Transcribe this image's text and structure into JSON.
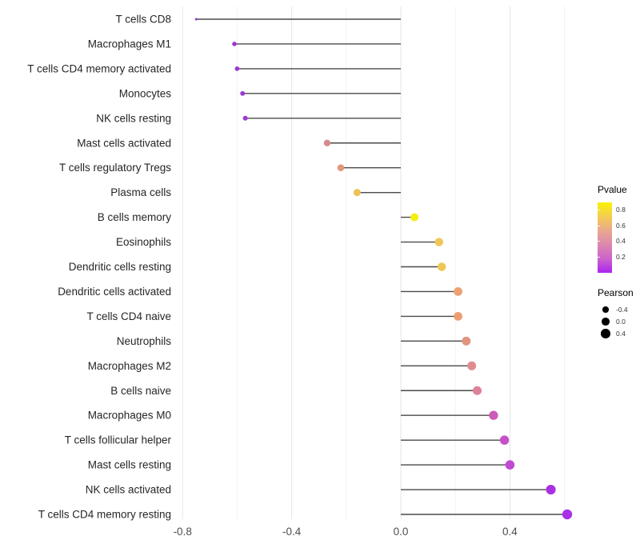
{
  "chart_data": {
    "type": "lollipop",
    "title": "",
    "xlabel": "",
    "ylabel": "",
    "x_range": [
      -0.818,
      0.625
    ],
    "baseline": 0,
    "grid": true,
    "x_ticks": [
      {
        "value": -0.8,
        "label": "-0.8"
      },
      {
        "value": -0.4,
        "label": "-0.4"
      },
      {
        "value": 0.0,
        "label": "0.0"
      },
      {
        "value": 0.4,
        "label": "0.4"
      }
    ],
    "x_gridlines_minor": [
      -0.6,
      -0.2,
      0.2,
      0.6
    ],
    "rows": [
      {
        "label": "T cells CD8",
        "pearson": -0.75,
        "pvalue": 0.05,
        "color": "#9b30e0"
      },
      {
        "label": "Macrophages M1",
        "pearson": -0.61,
        "pvalue": 0.05,
        "color": "#9c36d2"
      },
      {
        "label": "T cells CD4 memory activated",
        "pearson": -0.6,
        "pvalue": 0.05,
        "color": "#9c36d2"
      },
      {
        "label": "Monocytes",
        "pearson": -0.58,
        "pvalue": 0.06,
        "color": "#9d38d3"
      },
      {
        "label": "NK cells resting",
        "pearson": -0.57,
        "pvalue": 0.06,
        "color": "#9d38d3"
      },
      {
        "label": "Mast cells activated",
        "pearson": -0.27,
        "pvalue": 0.48,
        "color": "#d9888f"
      },
      {
        "label": "T cells regulatory  Tregs",
        "pearson": -0.22,
        "pvalue": 0.55,
        "color": "#e2977b"
      },
      {
        "label": "Plasma cells",
        "pearson": -0.16,
        "pvalue": 0.68,
        "color": "#ecc156"
      },
      {
        "label": "B cells memory",
        "pearson": 0.05,
        "pvalue": 0.86,
        "color": "#f2ee11"
      },
      {
        "label": "Eosinophils",
        "pearson": 0.14,
        "pvalue": 0.68,
        "color": "#eec754"
      },
      {
        "label": "Dendritic cells resting",
        "pearson": 0.15,
        "pvalue": 0.68,
        "color": "#eec754"
      },
      {
        "label": "Dendritic cells activated",
        "pearson": 0.21,
        "pvalue": 0.58,
        "color": "#eda172"
      },
      {
        "label": "T cells CD4 naive",
        "pearson": 0.21,
        "pvalue": 0.58,
        "color": "#eb9e70"
      },
      {
        "label": "Neutrophils",
        "pearson": 0.24,
        "pvalue": 0.52,
        "color": "#e2947e"
      },
      {
        "label": "Macrophages M2",
        "pearson": 0.26,
        "pvalue": 0.47,
        "color": "#e08b90"
      },
      {
        "label": "B cells naive",
        "pearson": 0.28,
        "pvalue": 0.44,
        "color": "#dd8199"
      },
      {
        "label": "Macrophages M0",
        "pearson": 0.34,
        "pvalue": 0.28,
        "color": "#cc5cb8"
      },
      {
        "label": "T cells follicular helper",
        "pearson": 0.38,
        "pvalue": 0.22,
        "color": "#c850c8"
      },
      {
        "label": "Mast cells resting",
        "pearson": 0.4,
        "pvalue": 0.18,
        "color": "#bf4bd0"
      },
      {
        "label": "NK cells activated",
        "pearson": 0.55,
        "pvalue": 0.06,
        "color": "#a832e3"
      },
      {
        "label": "T cells CD4 memory resting",
        "pearson": 0.61,
        "pvalue": 0.05,
        "color": "#a832e8"
      }
    ]
  },
  "legend": {
    "pvalue": {
      "title": "Pvalue",
      "ticks": [
        "0.8",
        "0.6",
        "0.4",
        "0.2"
      ],
      "gradient": [
        "#f8f303",
        "#f3cd52",
        "#e9a88e",
        "#dc87ae",
        "#cb63cc",
        "#ab24f0"
      ]
    },
    "pearson": {
      "title": "Pearson",
      "dot_color": "#000000",
      "items": [
        {
          "label": "-0.4",
          "value": -0.4
        },
        {
          "label": "0.0",
          "value": 0.0
        },
        {
          "label": "0.4",
          "value": 0.4
        }
      ]
    }
  },
  "colors": {
    "stem": "#4a4a4a",
    "grid_major": "#e6e6e6",
    "grid_minor": "#f2f2f2",
    "axis_text": "#4d4d4d",
    "label_text": "#262626",
    "background": "#ffffff"
  }
}
